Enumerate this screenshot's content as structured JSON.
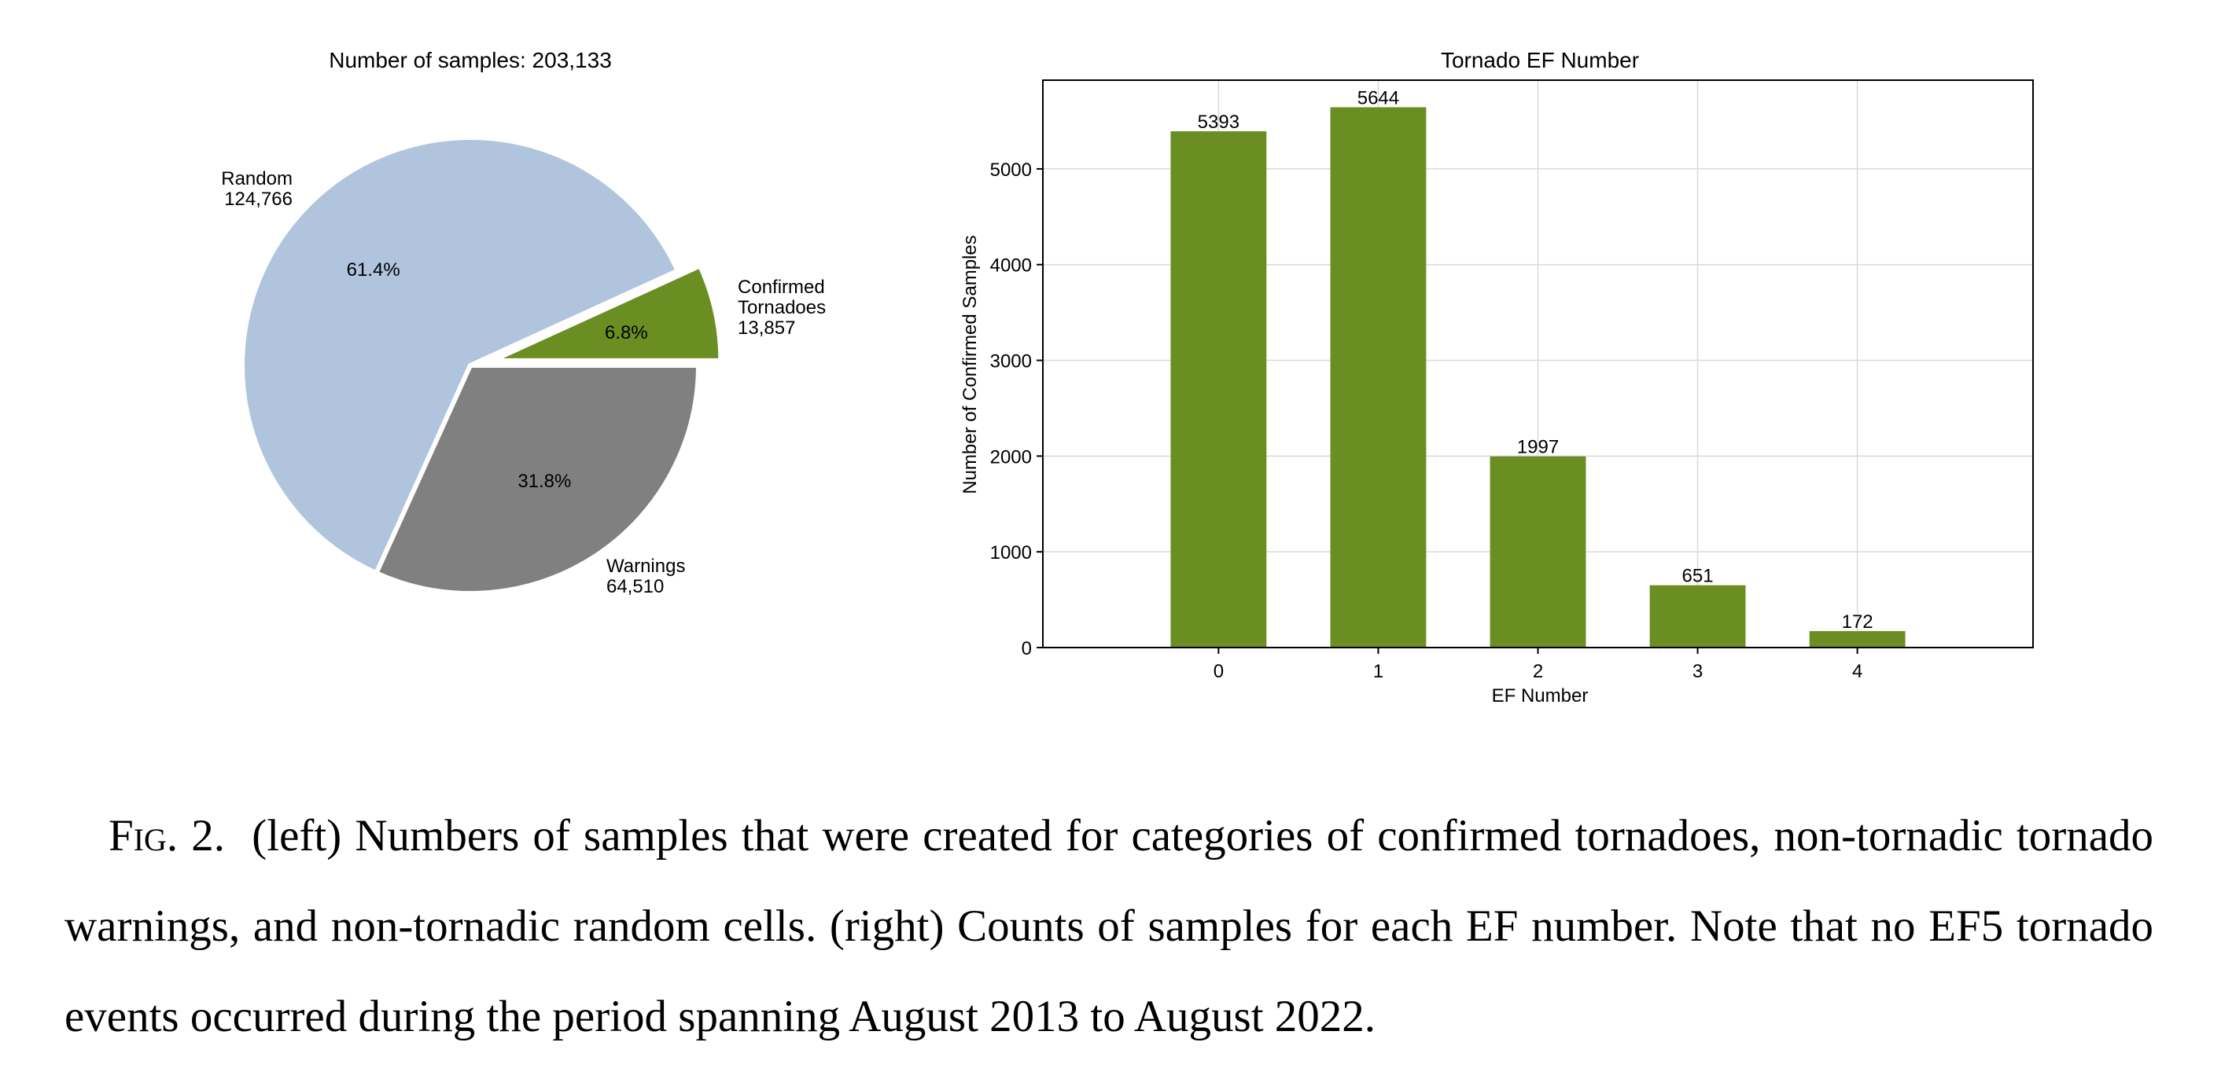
{
  "chart_data": [
    {
      "type": "pie",
      "title": "Number of samples: 203,133",
      "slices": [
        {
          "label_lines": [
            "Confirmed",
            "Tornadoes",
            "13,857"
          ],
          "value": 13857,
          "pct_label": "6.8%",
          "color": "#6b8e23",
          "exploded": true
        },
        {
          "label_lines": [
            "Random",
            "124,766"
          ],
          "value": 124766,
          "pct_label": "61.4%",
          "color": "#b0c4de",
          "exploded": false
        },
        {
          "label_lines": [
            "Warnings",
            "64,510"
          ],
          "value": 64510,
          "pct_label": "31.8%",
          "color": "#808080",
          "exploded": false
        }
      ]
    },
    {
      "type": "bar",
      "title": "Tornado EF Number",
      "xlabel": "EF Number",
      "ylabel": "Number of Confirmed Samples",
      "categories": [
        "0",
        "1",
        "2",
        "3",
        "4"
      ],
      "values": [
        5393,
        5644,
        1997,
        651,
        172
      ],
      "value_labels": [
        "5393",
        "5644",
        "1997",
        "651",
        "172"
      ],
      "ylim": [
        0,
        5927
      ],
      "yticks": [
        0,
        1000,
        2000,
        3000,
        4000,
        5000
      ],
      "grid": true,
      "color": "#6b8e23"
    }
  ],
  "caption": {
    "label": "Fig. 2.",
    "text": "(left) Numbers of samples that were created for categories of confirmed tornadoes, non-tornadic tornado warnings, and non-tornadic random cells. (right) Counts of samples for each EF number. Note that no EF5 tornado events occurred during the period spanning August 2013 to August 2022."
  }
}
